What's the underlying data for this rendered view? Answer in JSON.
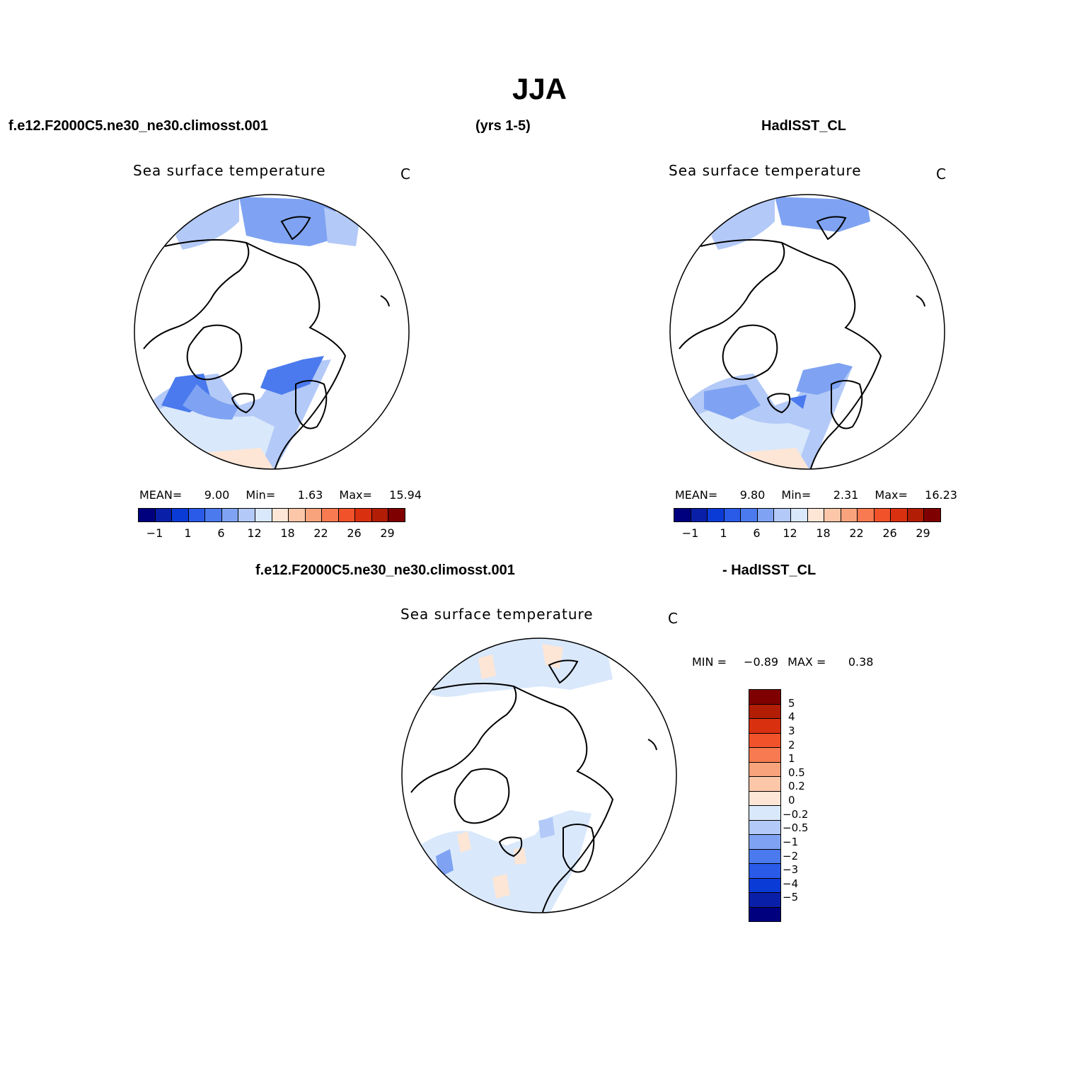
{
  "title": "JJA",
  "header": {
    "case": "f.e12.F2000C5.ne30_ne30.climosst.001",
    "years": "(yrs 1-5)",
    "obs": "HadISST_CL"
  },
  "panels": [
    {
      "id": "model",
      "variable": "Sea surface temperature",
      "unit": "C",
      "mean_label": "MEAN=",
      "mean": "9.00",
      "min_label": "Min=",
      "min": "1.63",
      "max_label": "Max=",
      "max": "15.94"
    },
    {
      "id": "obs",
      "variable": "Sea surface temperature",
      "unit": "C",
      "mean_label": "MEAN=",
      "mean": "9.80",
      "min_label": "Min=",
      "min": "2.31",
      "max_label": "Max=",
      "max": "16.23"
    }
  ],
  "diff": {
    "case": "f.e12.F2000C5.ne30_ne30.climosst.001",
    "obs": "- HadISST_CL",
    "variable": "Sea surface temperature",
    "unit": "C",
    "min_label": "MIN =",
    "min": "−0.89",
    "max_label": "MAX =",
    "max": "0.38"
  },
  "abs_colorbar": {
    "colors": [
      "#00007f",
      "#0a1fa8",
      "#0b3bd6",
      "#2a5ae8",
      "#4a7aed",
      "#7fa3f2",
      "#b3c9f7",
      "#d9e8fb",
      "#fde6d6",
      "#fcc7a9",
      "#f9a37c",
      "#f77a50",
      "#f1522a",
      "#d93010",
      "#b21d05",
      "#7f0000"
    ],
    "ticks": [
      "−1",
      "1",
      "6",
      "12",
      "18",
      "22",
      "26",
      "29"
    ]
  },
  "diff_colorbar": {
    "colors": [
      "#7f0000",
      "#b21d05",
      "#d93010",
      "#f1522a",
      "#f77a50",
      "#f9a37c",
      "#fcc7a9",
      "#fde6d6",
      "#d9e8fb",
      "#b3c9f7",
      "#7fa3f2",
      "#4a7aed",
      "#2a5ae8",
      "#0b3bd6",
      "#0a1fa8",
      "#00007f"
    ],
    "labels": [
      "5",
      "4",
      "3",
      "2",
      "1",
      "0.5",
      "0.2",
      "0",
      "−0.2",
      "−0.5",
      "−1",
      "−2",
      "−3",
      "−4",
      "−5"
    ]
  }
}
